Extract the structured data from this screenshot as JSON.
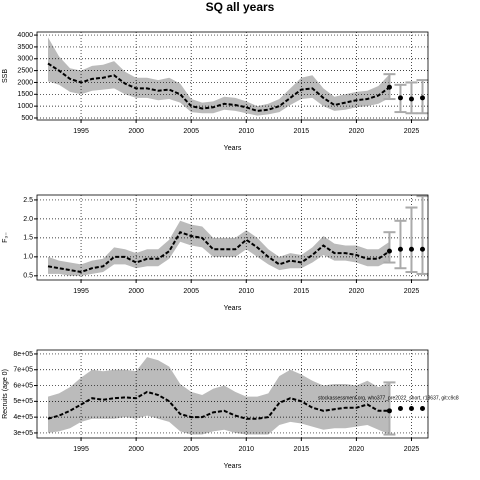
{
  "title": "SQ all years",
  "chart_data": [
    {
      "type": "line",
      "ylabel": "SSB",
      "xlabel": "Years",
      "grid": true,
      "color": "#000000",
      "band_color": "#bbbbbb",
      "x": [
        1992,
        1993,
        1994,
        1995,
        1996,
        1997,
        1998,
        1999,
        2000,
        2001,
        2002,
        2003,
        2004,
        2005,
        2006,
        2007,
        2008,
        2009,
        2010,
        2011,
        2012,
        2013,
        2014,
        2015,
        2016,
        2017,
        2018,
        2019,
        2020,
        2021,
        2022,
        2023
      ],
      "values": [
        2800,
        2500,
        2150,
        2000,
        2150,
        2200,
        2300,
        1950,
        1750,
        1750,
        1650,
        1700,
        1500,
        1000,
        900,
        950,
        1100,
        1050,
        950,
        800,
        850,
        1000,
        1350,
        1700,
        1750,
        1350,
        1050,
        1150,
        1250,
        1300,
        1450,
        1800
      ],
      "upper": [
        3900,
        3100,
        2600,
        2500,
        2700,
        2750,
        2900,
        2450,
        2200,
        2200,
        2100,
        2200,
        1950,
        1300,
        1150,
        1200,
        1400,
        1350,
        1200,
        1000,
        1100,
        1300,
        1750,
        2200,
        2300,
        1750,
        1400,
        1500,
        1600,
        1650,
        1850,
        2350
      ],
      "lower": [
        2050,
        1900,
        1600,
        1500,
        1650,
        1700,
        1750,
        1500,
        1350,
        1350,
        1250,
        1300,
        1150,
        750,
        700,
        700,
        850,
        800,
        700,
        600,
        650,
        750,
        1050,
        1300,
        1350,
        1000,
        800,
        850,
        950,
        1000,
        1100,
        1350
      ],
      "projection": {
        "x": [
          2023,
          2024,
          2025,
          2026
        ],
        "values": [
          1800,
          1350,
          1300,
          1350
        ],
        "lower": [
          1300,
          750,
          700,
          700
        ],
        "upper": [
          2350,
          1900,
          2000,
          2100
        ]
      },
      "xlim": [
        1991,
        2026.5
      ],
      "xticks": [
        1995,
        2000,
        2005,
        2010,
        2015,
        2020,
        2025
      ],
      "ylim": [
        415,
        4130
      ],
      "yticks": [
        500,
        1000,
        1500,
        2000,
        2500,
        3000,
        3500,
        4000
      ]
    },
    {
      "type": "line",
      "ylabel": "F₃₋",
      "xlabel": "Years",
      "grid": true,
      "color": "#000000",
      "band_color": "#bbbbbb",
      "x": [
        1992,
        1993,
        1994,
        1995,
        1996,
        1997,
        1998,
        1999,
        2000,
        2001,
        2002,
        2003,
        2004,
        2005,
        2006,
        2007,
        2008,
        2009,
        2010,
        2011,
        2012,
        2013,
        2014,
        2015,
        2016,
        2017,
        2018,
        2019,
        2020,
        2021,
        2022,
        2023
      ],
      "values": [
        0.75,
        0.7,
        0.65,
        0.6,
        0.7,
        0.75,
        1.0,
        1.0,
        0.85,
        0.95,
        0.95,
        1.15,
        1.65,
        1.55,
        1.5,
        1.2,
        1.2,
        1.2,
        1.45,
        1.25,
        1.0,
        0.8,
        0.9,
        0.85,
        1.05,
        1.3,
        1.1,
        1.1,
        1.05,
        0.95,
        0.95,
        1.15
      ],
      "upper": [
        1.0,
        0.9,
        0.85,
        0.8,
        0.9,
        0.95,
        1.25,
        1.2,
        1.1,
        1.2,
        1.2,
        1.45,
        1.95,
        1.85,
        1.8,
        1.5,
        1.5,
        1.5,
        1.7,
        1.5,
        1.2,
        1.0,
        1.1,
        1.05,
        1.25,
        1.55,
        1.35,
        1.3,
        1.3,
        1.2,
        1.2,
        1.4
      ],
      "lower": [
        0.55,
        0.55,
        0.5,
        0.5,
        0.55,
        0.6,
        0.8,
        0.8,
        0.7,
        0.75,
        0.75,
        0.95,
        1.4,
        1.3,
        1.25,
        1.0,
        1.0,
        1.0,
        1.2,
        1.0,
        0.8,
        0.65,
        0.7,
        0.7,
        0.85,
        1.05,
        0.9,
        0.9,
        0.85,
        0.75,
        0.75,
        0.9
      ],
      "projection": {
        "x": [
          2023,
          2024,
          2025,
          2026
        ],
        "values": [
          1.15,
          1.2,
          1.2,
          1.2
        ],
        "lower": [
          0.85,
          0.7,
          0.6,
          0.55
        ],
        "upper": [
          1.65,
          1.95,
          2.3,
          2.6
        ]
      },
      "xlim": [
        1991,
        2026.5
      ],
      "xticks": [
        1995,
        2000,
        2005,
        2010,
        2015,
        2020,
        2025
      ],
      "ylim": [
        0.39,
        2.63
      ],
      "yticks": [
        0.5,
        {
          "value": 1,
          "label": "1.0"
        },
        1.5,
        {
          "value": 2,
          "label": "2.0"
        },
        2.5
      ]
    },
    {
      "type": "line",
      "ylabel": "Recruits (age 0)",
      "xlabel": "Years",
      "grid": true,
      "color": "#000000",
      "band_color": "#bbbbbb",
      "annotation": "stockassessment.org, who377_pre2022_short, r18637, git:c9c8",
      "x": [
        1992,
        1993,
        1994,
        1995,
        1996,
        1997,
        1998,
        1999,
        2000,
        2001,
        2002,
        2003,
        2004,
        2005,
        2006,
        2007,
        2008,
        2009,
        2010,
        2011,
        2012,
        2013,
        2014,
        2015,
        2016,
        2017,
        2018,
        2019,
        2020,
        2021,
        2022,
        2023
      ],
      "values": [
        390000,
        410000,
        440000,
        480000,
        520000,
        510000,
        520000,
        525000,
        520000,
        560000,
        540000,
        500000,
        420000,
        400000,
        400000,
        430000,
        440000,
        410000,
        390000,
        390000,
        400000,
        490000,
        520000,
        500000,
        460000,
        440000,
        450000,
        460000,
        460000,
        480000,
        440000,
        440000
      ],
      "upper": [
        530000,
        550000,
        590000,
        650000,
        700000,
        690000,
        700000,
        700000,
        690000,
        780000,
        760000,
        720000,
        610000,
        560000,
        540000,
        580000,
        600000,
        560000,
        530000,
        530000,
        550000,
        660000,
        700000,
        670000,
        630000,
        600000,
        610000,
        610000,
        600000,
        630000,
        590000,
        620000
      ],
      "lower": [
        300000,
        310000,
        330000,
        370000,
        390000,
        390000,
        390000,
        400000,
        390000,
        410000,
        390000,
        370000,
        310000,
        290000,
        290000,
        310000,
        320000,
        300000,
        290000,
        290000,
        290000,
        350000,
        370000,
        360000,
        340000,
        320000,
        330000,
        330000,
        340000,
        350000,
        320000,
        290000
      ],
      "projection": {
        "x": [
          2023,
          2024,
          2025,
          2026
        ],
        "values": [
          440000,
          455000,
          455000,
          455000
        ],
        "lower": [
          290000,
          null,
          null,
          null
        ],
        "upper": [
          620000,
          null,
          null,
          null
        ]
      },
      "xlim": [
        1991,
        2026.5
      ],
      "xticks": [
        1995,
        2000,
        2005,
        2010,
        2015,
        2020,
        2025
      ],
      "ylim": [
        268000,
        825000
      ],
      "yticks": [
        {
          "value": 300000,
          "label": "3e+05"
        },
        {
          "value": 400000,
          "label": "4e+05"
        },
        {
          "value": 500000,
          "label": "5e+05"
        },
        {
          "value": 600000,
          "label": "6e+05"
        },
        {
          "value": 700000,
          "label": "7e+05"
        },
        {
          "value": 800000,
          "label": "8e+05"
        }
      ]
    }
  ]
}
